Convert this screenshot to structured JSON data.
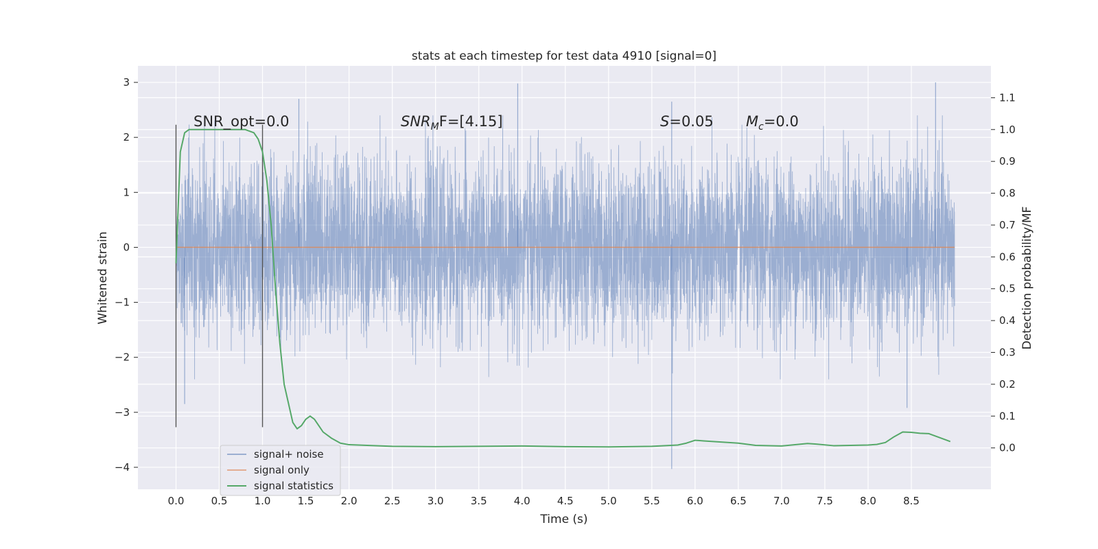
{
  "chart_data": {
    "type": "line",
    "title": "stats at each timestep for test data 4910 [signal=0]",
    "xlabel": "Time (s)",
    "ylabel": "Whitened strain",
    "y2label": "Detection probability/MF",
    "xlim": [
      -0.44,
      9.42
    ],
    "ylim": [
      -4.4,
      3.3
    ],
    "y2lim": [
      -0.13,
      1.2
    ],
    "x_ticks": [
      0.0,
      0.5,
      1.0,
      1.5,
      2.0,
      2.5,
      3.0,
      3.5,
      4.0,
      4.5,
      5.0,
      5.5,
      6.0,
      6.5,
      7.0,
      7.5,
      8.0,
      8.5
    ],
    "x_tick_labels": [
      "0.0",
      "0.5",
      "1.0",
      "1.5",
      "2.0",
      "2.5",
      "3.0",
      "3.5",
      "4.0",
      "4.5",
      "5.0",
      "5.5",
      "6.0",
      "6.5",
      "7.0",
      "7.5",
      "8.0",
      "8.5"
    ],
    "y_ticks": [
      -4,
      -3,
      -2,
      -1,
      0,
      1,
      2,
      3
    ],
    "y_tick_labels": [
      "−4",
      "−3",
      "−2",
      "−1",
      "0",
      "1",
      "2",
      "3"
    ],
    "y2_ticks": [
      0.0,
      0.1,
      0.2,
      0.3,
      0.4,
      0.5,
      0.6,
      0.7,
      0.8,
      0.9,
      1.0,
      1.1
    ],
    "y2_tick_labels": [
      "0.0",
      "0.1",
      "0.2",
      "0.3",
      "0.4",
      "0.5",
      "0.6",
      "0.7",
      "0.8",
      "0.9",
      "1.0",
      "1.1"
    ],
    "grid": true,
    "legend_position": "lower-left",
    "series": [
      {
        "name": "signal+ noise",
        "color": "#4c72b0",
        "axis": "left",
        "x_range": [
          0.0,
          9.0
        ],
        "typical_range": [
          -1.6,
          1.6
        ],
        "notable_spikes": [
          [
            0.1,
            -2.85
          ],
          [
            1.42,
            2.7
          ],
          [
            3.95,
            2.98
          ],
          [
            5.73,
            -4.03
          ],
          [
            5.73,
            2.65
          ],
          [
            8.45,
            -2.92
          ],
          [
            8.78,
            3.0
          ]
        ]
      },
      {
        "name": "signal only",
        "color": "#dd8452",
        "axis": "left",
        "x": [
          0.0,
          9.0
        ],
        "y": [
          0.0,
          0.0
        ]
      },
      {
        "name": "signal statistics",
        "color": "#55a868",
        "axis": "right",
        "x": [
          0.0,
          0.05,
          0.1,
          0.15,
          0.2,
          0.3,
          0.5,
          0.7,
          0.8,
          0.9,
          0.95,
          1.0,
          1.05,
          1.1,
          1.15,
          1.2,
          1.25,
          1.3,
          1.35,
          1.4,
          1.45,
          1.5,
          1.55,
          1.6,
          1.65,
          1.7,
          1.8,
          1.9,
          2.0,
          2.5,
          3.0,
          3.5,
          4.0,
          4.5,
          5.0,
          5.5,
          5.8,
          5.9,
          6.0,
          6.1,
          6.5,
          6.7,
          7.0,
          7.3,
          7.4,
          7.6,
          8.0,
          8.1,
          8.2,
          8.3,
          8.4,
          8.5,
          8.6,
          8.7,
          8.8,
          8.9,
          8.95
        ],
        "y": [
          0.58,
          0.93,
          0.99,
          1.0,
          1.0,
          1.0,
          1.0,
          1.0,
          1.0,
          0.99,
          0.97,
          0.93,
          0.84,
          0.7,
          0.5,
          0.33,
          0.2,
          0.14,
          0.08,
          0.06,
          0.07,
          0.09,
          0.1,
          0.09,
          0.07,
          0.05,
          0.03,
          0.015,
          0.01,
          0.005,
          0.004,
          0.005,
          0.006,
          0.004,
          0.003,
          0.005,
          0.009,
          0.015,
          0.024,
          0.022,
          0.015,
          0.008,
          0.006,
          0.014,
          0.012,
          0.007,
          0.009,
          0.011,
          0.017,
          0.035,
          0.05,
          0.049,
          0.046,
          0.045,
          0.035,
          0.025,
          0.02
        ]
      }
    ],
    "vertical_lines": {
      "color": "#555555",
      "x": [
        0.0,
        1.0
      ],
      "y_range": [
        -3.27,
        2.23
      ]
    },
    "annotations": {
      "snr_opt": "SNR_opt=0.0",
      "snr_mf_base": "SNR",
      "snr_mf_sub": "M",
      "snr_mf_rest": "F=[4.15]",
      "s_sym": "S",
      "s_rest": "=0.05",
      "mc_base": "M",
      "mc_sub": "c",
      "mc_rest": "=0.0"
    }
  }
}
